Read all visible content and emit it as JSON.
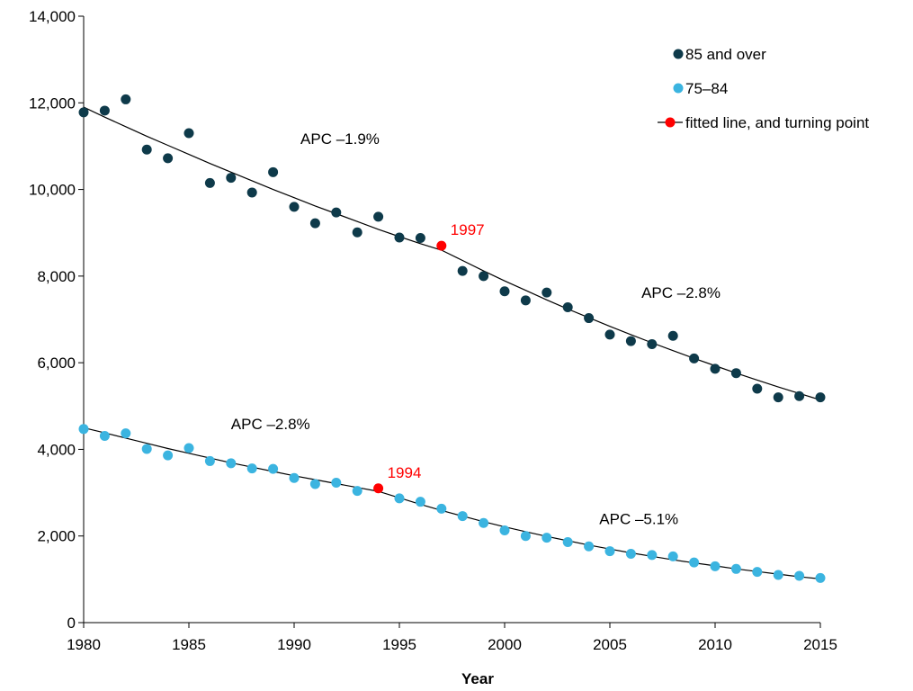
{
  "chart_data": {
    "type": "scatter",
    "xlabel": "Year",
    "ylabel": "",
    "xlim": [
      1980,
      2015
    ],
    "ylim": [
      0,
      14000
    ],
    "x_ticks": [
      1980,
      1985,
      1990,
      1995,
      2000,
      2005,
      2010,
      2015
    ],
    "y_ticks": [
      0,
      2000,
      4000,
      6000,
      8000,
      10000,
      12000,
      14000
    ],
    "x_tick_labels": [
      "1980",
      "1985",
      "1990",
      "1995",
      "2000",
      "2005",
      "2010",
      "2015"
    ],
    "y_tick_labels": [
      "0",
      "2,000",
      "4,000",
      "6,000",
      "8,000",
      "10,000",
      "12,000",
      "14,000"
    ],
    "grid": false,
    "legend_position": "top-right",
    "legend": [
      {
        "label": "85 and over",
        "type": "marker",
        "color": "#0e3a4a"
      },
      {
        "label": "75–84",
        "type": "marker",
        "color": "#3bb4e0"
      },
      {
        "label": "fitted line, and turning point",
        "type": "line-marker",
        "color": "#000000",
        "marker_color": "#ff0000"
      }
    ],
    "series": [
      {
        "name": "85 and over",
        "color": "#0e3a4a",
        "x": [
          1980,
          1981,
          1982,
          1983,
          1984,
          1985,
          1986,
          1987,
          1988,
          1989,
          1990,
          1991,
          1992,
          1993,
          1994,
          1995,
          1996,
          1997,
          1998,
          1999,
          2000,
          2001,
          2002,
          2003,
          2004,
          2005,
          2006,
          2007,
          2008,
          2009,
          2010,
          2011,
          2012,
          2013,
          2014,
          2015
        ],
        "y": [
          11780,
          11820,
          12080,
          10920,
          10720,
          11300,
          10150,
          10270,
          9930,
          10400,
          9600,
          9220,
          9470,
          9010,
          9370,
          8890,
          8880,
          8700,
          8120,
          8000,
          7650,
          7440,
          7620,
          7280,
          7030,
          6650,
          6500,
          6430,
          6620,
          6100,
          5860,
          5760,
          5400,
          5200,
          5230,
          5200
        ],
        "fitted_line": {
          "x": [
            1980,
            1981,
            1982,
            1983,
            1984,
            1985,
            1986,
            1987,
            1988,
            1989,
            1990,
            1991,
            1992,
            1993,
            1994,
            1995,
            1996,
            1997,
            1998,
            1999,
            2000,
            2001,
            2002,
            2003,
            2004,
            2005,
            2006,
            2007,
            2008,
            2009,
            2010,
            2011,
            2012,
            2013,
            2014,
            2015
          ],
          "y": [
            11900,
            11670,
            11450,
            11230,
            11020,
            10810,
            10600,
            10400,
            10200,
            10000,
            9810,
            9620,
            9440,
            9260,
            9080,
            8910,
            8750,
            8600,
            8360,
            8120,
            7890,
            7670,
            7450,
            7240,
            7040,
            6840,
            6650,
            6460,
            6280,
            6100,
            5930,
            5760,
            5600,
            5440,
            5290,
            5140
          ]
        },
        "turning_point": {
          "x": 1997,
          "y": 8700,
          "label": "1997"
        },
        "annotations": [
          {
            "text": "APC –1.9%",
            "x": 1990.3,
            "y": 11050
          },
          {
            "text": "APC –2.8%",
            "x": 2006.5,
            "y": 7500
          }
        ]
      },
      {
        "name": "75–84",
        "color": "#3bb4e0",
        "x": [
          1980,
          1981,
          1982,
          1983,
          1984,
          1985,
          1986,
          1987,
          1988,
          1989,
          1990,
          1991,
          1992,
          1993,
          1994,
          1995,
          1996,
          1997,
          1998,
          1999,
          2000,
          2001,
          2002,
          2003,
          2004,
          2005,
          2006,
          2007,
          2008,
          2009,
          2010,
          2011,
          2012,
          2013,
          2014,
          2015
        ],
        "y": [
          4470,
          4310,
          4370,
          4010,
          3860,
          4030,
          3730,
          3680,
          3560,
          3550,
          3340,
          3200,
          3230,
          3040,
          3100,
          2870,
          2790,
          2630,
          2460,
          2300,
          2130,
          2000,
          1960,
          1860,
          1760,
          1650,
          1590,
          1560,
          1530,
          1390,
          1300,
          1240,
          1170,
          1100,
          1080,
          1030
        ],
        "fitted_line": {
          "x": [
            1980,
            1981,
            1982,
            1983,
            1984,
            1985,
            1986,
            1987,
            1988,
            1989,
            1990,
            1991,
            1992,
            1993,
            1994,
            1995,
            1996,
            1997,
            1998,
            1999,
            2000,
            2001,
            2002,
            2003,
            2004,
            2005,
            2006,
            2007,
            2008,
            2009,
            2010,
            2011,
            2012,
            2013,
            2014,
            2015
          ],
          "y": [
            4500,
            4380,
            4260,
            4140,
            4020,
            3910,
            3800,
            3690,
            3590,
            3490,
            3390,
            3300,
            3210,
            3120,
            3030,
            2880,
            2730,
            2590,
            2460,
            2330,
            2210,
            2100,
            1990,
            1890,
            1790,
            1700,
            1610,
            1530,
            1450,
            1380,
            1310,
            1240,
            1180,
            1120,
            1060,
            1010
          ]
        },
        "turning_point": {
          "x": 1994,
          "y": 3100,
          "label": "1994"
        },
        "annotations": [
          {
            "text": "APC –2.8%",
            "x": 1987,
            "y": 4470
          },
          {
            "text": "APC –5.1%",
            "x": 2004.5,
            "y": 2270
          }
        ]
      }
    ]
  }
}
